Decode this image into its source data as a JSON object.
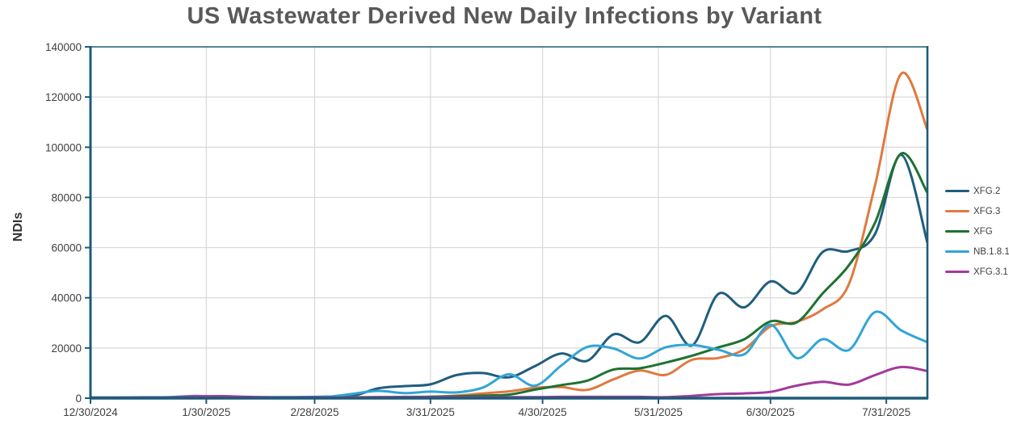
{
  "chart": {
    "title": "US Wastewater Derived New Daily Infections by Variant",
    "ylabel": "NDIs"
  },
  "colors": {
    "axis_border": "#1d5b78",
    "grid": "#d9d9d9",
    "title_text": "#58595b",
    "tick_text": "#404040",
    "legend_text": "#3d3d3d",
    "background": "#ffffff"
  },
  "chart_data": {
    "type": "line",
    "title": "US Wastewater Derived New Daily Infections by Variant",
    "xlabel": "",
    "ylabel": "NDIs",
    "ylim": [
      0,
      140000
    ],
    "grid": true,
    "legend_position": "right",
    "xticks": [
      "12/30/2024",
      "1/30/2025",
      "2/28/2025",
      "3/31/2025",
      "4/30/2025",
      "5/31/2025",
      "6/30/2025",
      "7/31/2025"
    ],
    "yticks": [
      0,
      20000,
      40000,
      60000,
      80000,
      100000,
      120000,
      140000
    ],
    "x": [
      "12/30/2024",
      "1/6/2025",
      "1/13/2025",
      "1/20/2025",
      "1/27/2025",
      "2/3/2025",
      "2/10/2025",
      "2/17/2025",
      "2/24/2025",
      "3/3/2025",
      "3/10/2025",
      "3/17/2025",
      "3/24/2025",
      "3/31/2025",
      "4/7/2025",
      "4/14/2025",
      "4/21/2025",
      "4/28/2025",
      "5/5/2025",
      "5/12/2025",
      "5/19/2025",
      "5/26/2025",
      "6/2/2025",
      "6/9/2025",
      "6/16/2025",
      "6/23/2025",
      "6/30/2025",
      "7/7/2025",
      "7/14/2025",
      "7/21/2025",
      "7/28/2025",
      "8/4/2025",
      "8/11/2025"
    ],
    "series": [
      {
        "name": "XFG.2",
        "color": "#1f5e7e",
        "values": [
          200,
          200,
          250,
          250,
          300,
          300,
          350,
          350,
          400,
          600,
          800,
          3900,
          4800,
          5500,
          9200,
          10000,
          8300,
          12800,
          17800,
          14900,
          25400,
          22300,
          32800,
          21000,
          41500,
          36200,
          46500,
          42000,
          58300,
          58600,
          65500,
          97000,
          62000
        ]
      },
      {
        "name": "XFG.3",
        "color": "#e0793f",
        "values": [
          100,
          100,
          150,
          150,
          200,
          200,
          250,
          250,
          300,
          300,
          400,
          400,
          500,
          600,
          1000,
          1900,
          2700,
          4100,
          4400,
          3300,
          7500,
          11000,
          9300,
          15300,
          16000,
          19500,
          28600,
          30400,
          35400,
          45500,
          85000,
          129300,
          107000
        ]
      },
      {
        "name": "XFG",
        "color": "#1e7231",
        "values": [
          100,
          100,
          100,
          150,
          150,
          200,
          200,
          250,
          250,
          300,
          300,
          350,
          400,
          500,
          700,
          1000,
          1400,
          3400,
          5200,
          7000,
          11400,
          11900,
          14200,
          16900,
          20200,
          23500,
          30600,
          30200,
          41800,
          53000,
          70000,
          97500,
          81800
        ]
      },
      {
        "name": "NB.1.8.1",
        "color": "#31a5d6",
        "values": [
          300,
          300,
          350,
          400,
          900,
          500,
          400,
          400,
          400,
          500,
          1700,
          2900,
          2000,
          2600,
          2300,
          4200,
          9500,
          5000,
          13000,
          20400,
          19800,
          15800,
          20300,
          21200,
          19300,
          17500,
          29300,
          16000,
          23500,
          19200,
          34300,
          27000,
          22300
        ]
      },
      {
        "name": "XFG.3.1",
        "color": "#a23a9c",
        "values": [
          200,
          200,
          250,
          300,
          700,
          800,
          500,
          300,
          300,
          300,
          300,
          350,
          400,
          400,
          400,
          400,
          400,
          400,
          500,
          500,
          500,
          500,
          400,
          900,
          1600,
          1900,
          2500,
          5000,
          6500,
          5400,
          9200,
          12400,
          10800
        ]
      }
    ]
  }
}
